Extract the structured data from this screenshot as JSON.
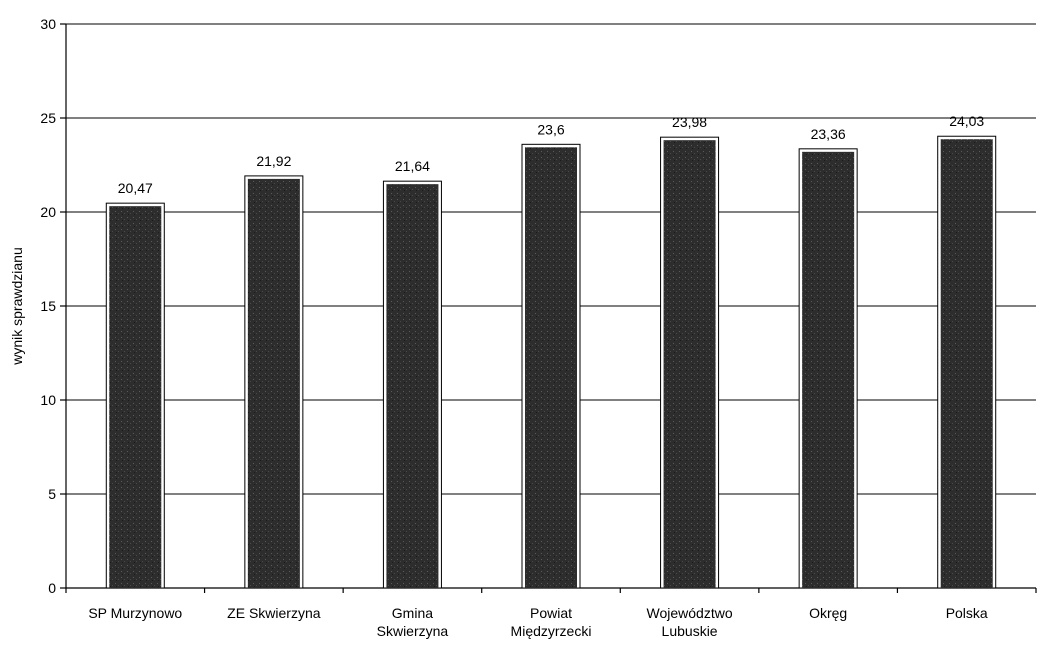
{
  "chart_data": {
    "type": "bar",
    "ylabel": "wynik sprawdzianu",
    "xlabel": "",
    "title": "",
    "ylim": [
      0,
      30
    ],
    "y_ticks": [
      "0",
      "5",
      "10",
      "15",
      "20",
      "25",
      "30"
    ],
    "grid": true,
    "legend": "none",
    "bar_color": "#2b2b2b",
    "categories": [
      [
        "SP Murzynowo"
      ],
      [
        "ZE Skwierzyna"
      ],
      [
        "Gmina",
        "Skwierzyna"
      ],
      [
        "Powiat",
        "Międzyrzecki"
      ],
      [
        "Województwo",
        "Lubuskie"
      ],
      [
        "Okręg"
      ],
      [
        "Polska"
      ]
    ],
    "values": [
      20.47,
      21.92,
      21.64,
      23.6,
      23.98,
      23.36,
      24.03
    ],
    "data_labels": [
      "20,47",
      "21,92",
      "21,64",
      "23,6",
      "23,98",
      "23,36",
      "24,03"
    ]
  }
}
